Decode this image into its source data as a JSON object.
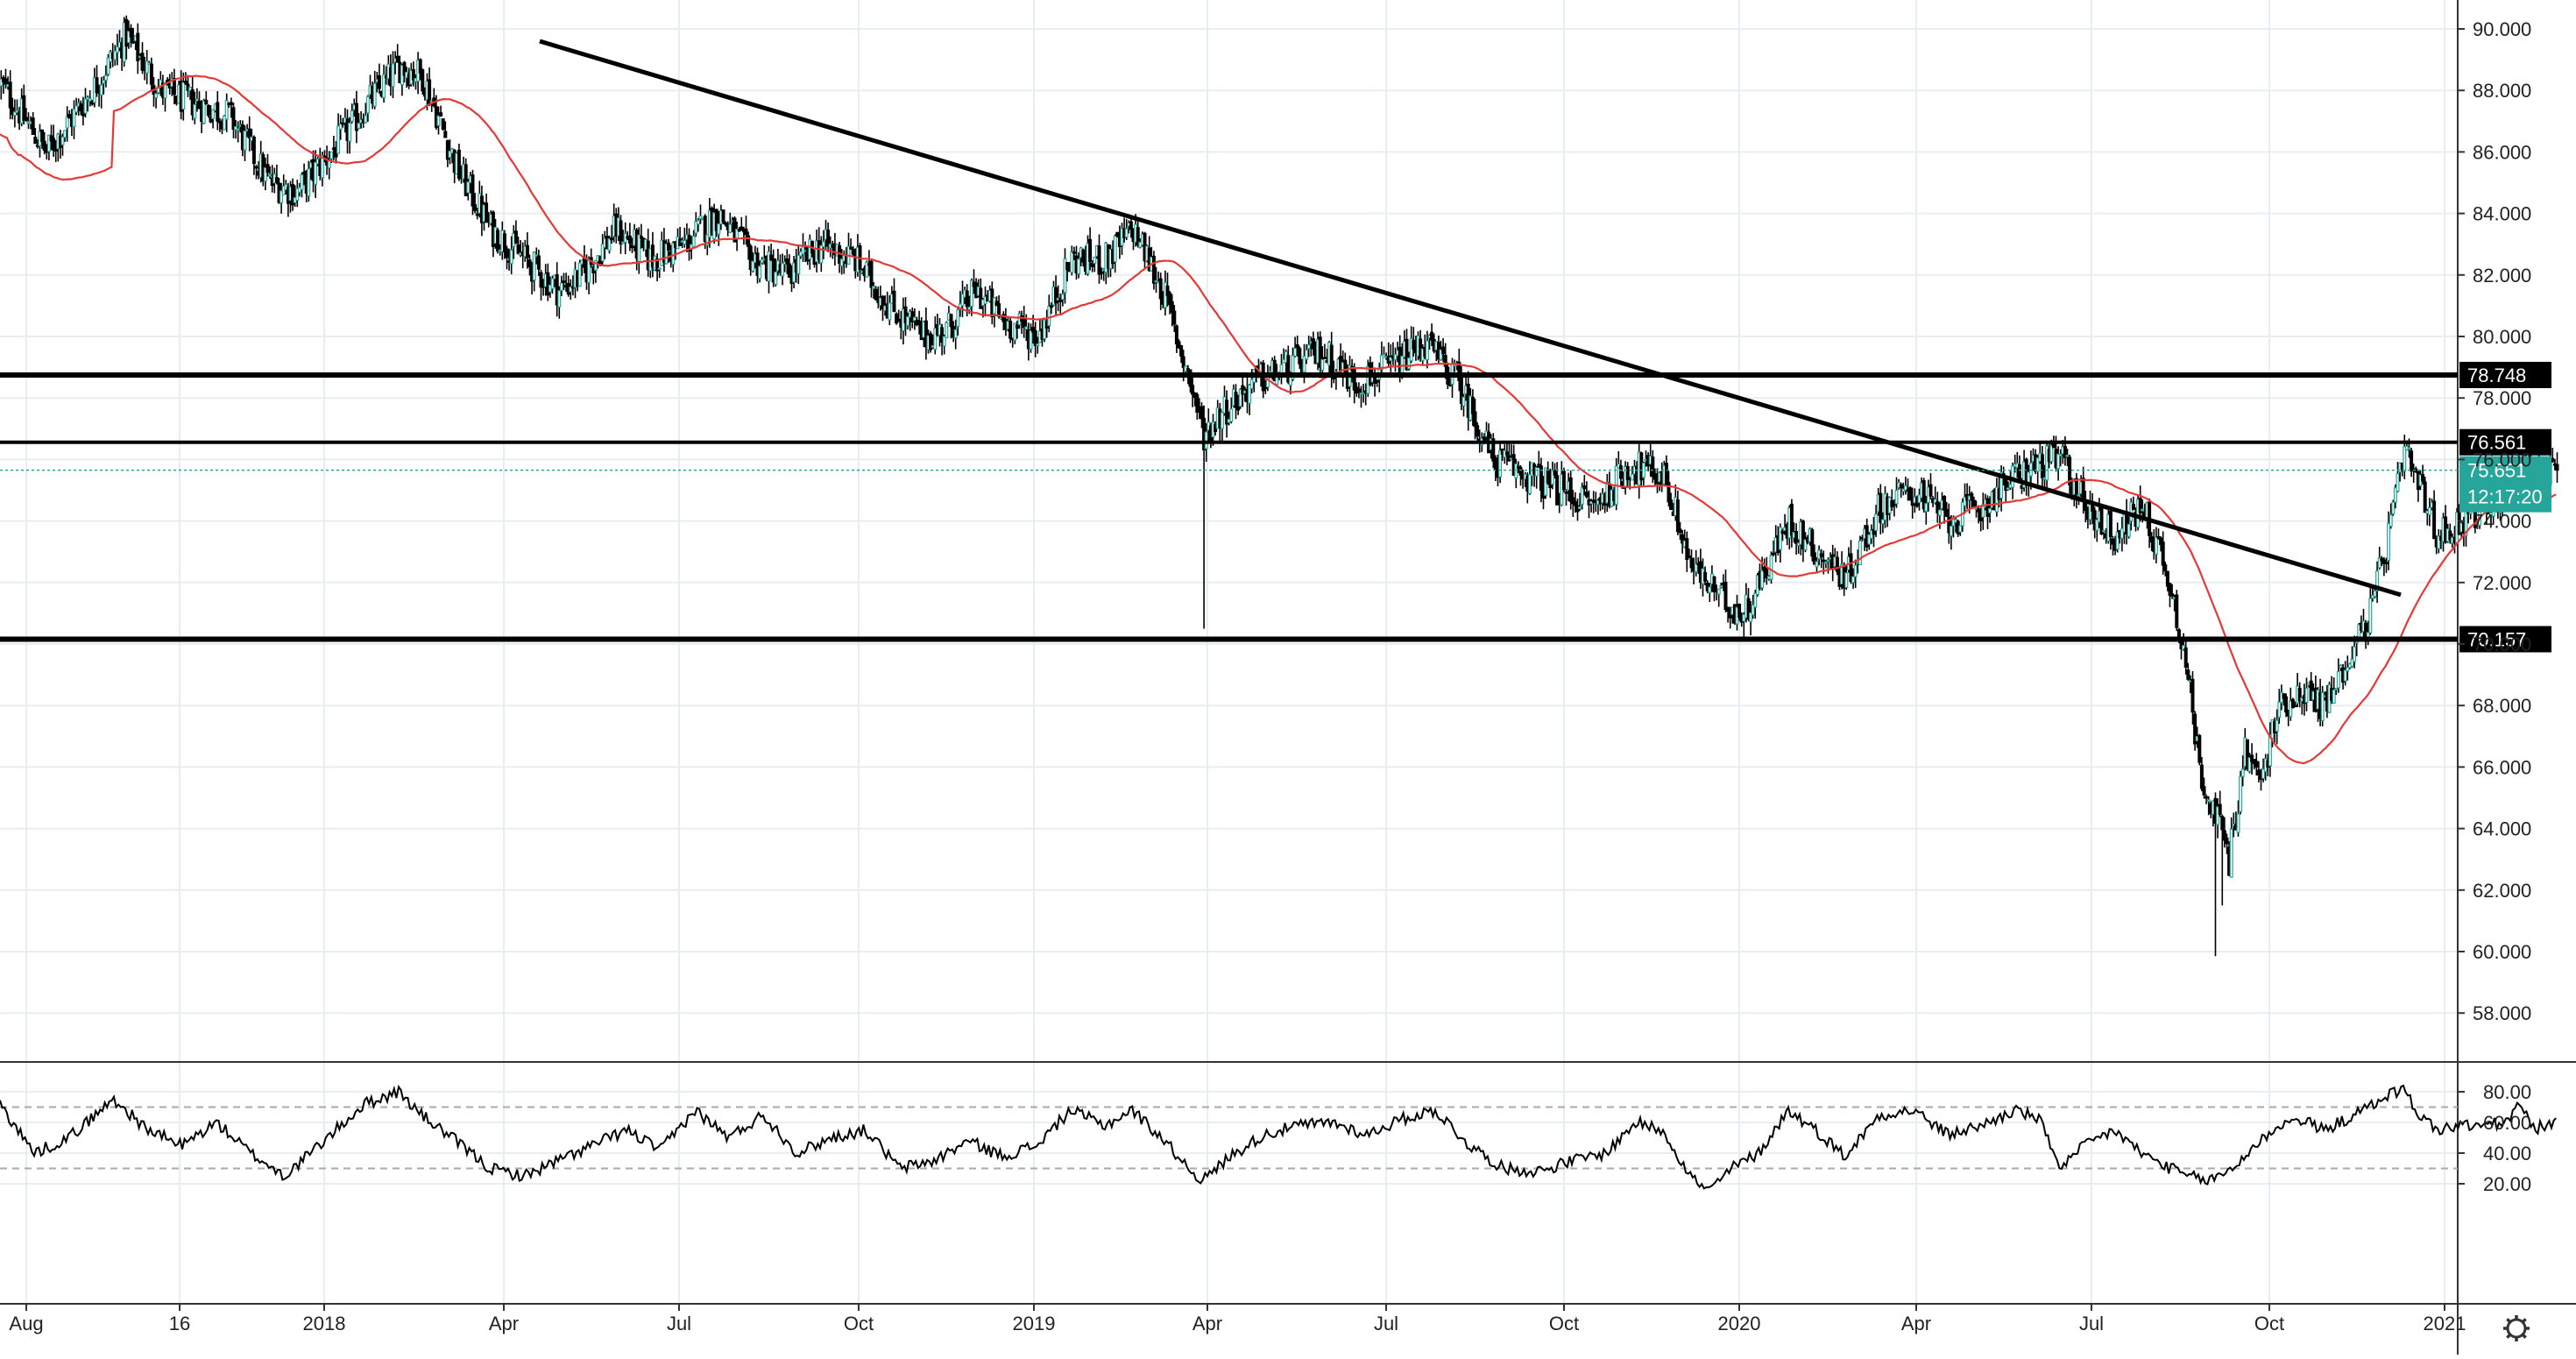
{
  "chart_data": [
    {
      "type": "candlestick",
      "title": "",
      "ylim": [
        55.0,
        91.0
      ],
      "y_ticks": [
        "58.000",
        "60.000",
        "62.000",
        "64.000",
        "66.000",
        "68.000",
        "70.000",
        "72.000",
        "74.000",
        "76.000",
        "78.000",
        "80.000",
        "82.000",
        "84.000",
        "86.000",
        "88.000",
        "90.000"
      ],
      "x_ticks": [
        "Aug",
        "16",
        "2018",
        "Apr",
        "Jul",
        "Oct",
        "2019",
        "Apr",
        "Jul",
        "Oct",
        "2020",
        "Apr",
        "Jul",
        "Oct",
        "2021"
      ],
      "grid": true,
      "price_anchors": [
        {
          "t": 0,
          "v": 88.2
        },
        {
          "t": 20,
          "v": 86.0
        },
        {
          "t": 40,
          "v": 88.0
        },
        {
          "t": 55,
          "v": 89.8
        },
        {
          "t": 70,
          "v": 88.0
        },
        {
          "t": 85,
          "v": 87.6
        },
        {
          "t": 100,
          "v": 87.2
        },
        {
          "t": 118,
          "v": 85.0
        },
        {
          "t": 130,
          "v": 84.7
        },
        {
          "t": 145,
          "v": 86.0
        },
        {
          "t": 160,
          "v": 87.5
        },
        {
          "t": 175,
          "v": 88.8
        },
        {
          "t": 185,
          "v": 88.5
        },
        {
          "t": 200,
          "v": 85.5
        },
        {
          "t": 215,
          "v": 83.5
        },
        {
          "t": 230,
          "v": 82.5
        },
        {
          "t": 245,
          "v": 81.5
        },
        {
          "t": 255,
          "v": 82.0
        },
        {
          "t": 270,
          "v": 83.5
        },
        {
          "t": 285,
          "v": 82.5
        },
        {
          "t": 300,
          "v": 83.0
        },
        {
          "t": 315,
          "v": 84.0
        },
        {
          "t": 330,
          "v": 82.5
        },
        {
          "t": 345,
          "v": 82.0
        },
        {
          "t": 360,
          "v": 83.0
        },
        {
          "t": 375,
          "v": 82.5
        },
        {
          "t": 390,
          "v": 81.0
        },
        {
          "t": 405,
          "v": 80.0
        },
        {
          "t": 415,
          "v": 80.2
        },
        {
          "t": 428,
          "v": 81.5
        },
        {
          "t": 440,
          "v": 80.5
        },
        {
          "t": 455,
          "v": 80.0
        },
        {
          "t": 470,
          "v": 82.5
        },
        {
          "t": 485,
          "v": 82.5
        },
        {
          "t": 497,
          "v": 83.5
        },
        {
          "t": 510,
          "v": 81.5
        },
        {
          "t": 522,
          "v": 78.5
        },
        {
          "t": 528,
          "v": 76.8
        },
        {
          "t": 535,
          "v": 77.5
        },
        {
          "t": 550,
          "v": 78.5
        },
        {
          "t": 565,
          "v": 79.0
        },
        {
          "t": 580,
          "v": 79.5
        },
        {
          "t": 595,
          "v": 78.5
        },
        {
          "t": 610,
          "v": 79.0
        },
        {
          "t": 625,
          "v": 79.8
        },
        {
          "t": 640,
          "v": 78.5
        },
        {
          "t": 655,
          "v": 76.0
        },
        {
          "t": 670,
          "v": 75.5
        },
        {
          "t": 685,
          "v": 75.0
        },
        {
          "t": 700,
          "v": 74.5
        },
        {
          "t": 715,
          "v": 75.8
        },
        {
          "t": 730,
          "v": 75.5
        },
        {
          "t": 742,
          "v": 72.5
        },
        {
          "t": 755,
          "v": 71.5
        },
        {
          "t": 765,
          "v": 71.0
        },
        {
          "t": 775,
          "v": 72.5
        },
        {
          "t": 785,
          "v": 74.0
        },
        {
          "t": 797,
          "v": 73.0
        },
        {
          "t": 810,
          "v": 72.2
        },
        {
          "t": 825,
          "v": 74.5
        },
        {
          "t": 840,
          "v": 75.0
        },
        {
          "t": 855,
          "v": 74.0
        },
        {
          "t": 870,
          "v": 74.5
        },
        {
          "t": 880,
          "v": 75.2
        },
        {
          "t": 892,
          "v": 75.8
        },
        {
          "t": 905,
          "v": 76.0
        },
        {
          "t": 915,
          "v": 74.5
        },
        {
          "t": 928,
          "v": 73.5
        },
        {
          "t": 940,
          "v": 74.5
        },
        {
          "t": 950,
          "v": 72.5
        },
        {
          "t": 958,
          "v": 70.0
        },
        {
          "t": 965,
          "v": 66.0
        },
        {
          "t": 972,
          "v": 64.5
        },
        {
          "t": 978,
          "v": 63.0
        },
        {
          "t": 985,
          "v": 66.5
        },
        {
          "t": 992,
          "v": 65.5
        },
        {
          "t": 1000,
          "v": 68.0
        },
        {
          "t": 1010,
          "v": 68.5
        },
        {
          "t": 1020,
          "v": 68.0
        },
        {
          "t": 1030,
          "v": 69.5
        },
        {
          "t": 1040,
          "v": 71.0
        },
        {
          "t": 1048,
          "v": 73.5
        },
        {
          "t": 1055,
          "v": 76.2
        },
        {
          "t": 1062,
          "v": 75.0
        },
        {
          "t": 1070,
          "v": 73.5
        },
        {
          "t": 1080,
          "v": 74.0
        },
        {
          "t": 1090,
          "v": 74.5
        },
        {
          "t": 1100,
          "v": 75.0
        },
        {
          "t": 1108,
          "v": 76.0
        },
        {
          "t": 1116,
          "v": 75.4
        },
        {
          "t": 1122,
          "v": 75.6
        }
      ],
      "price_stats": {
        "min": 59.85,
        "max": 90.3,
        "last": 75.651
      },
      "downtrend_line": {
        "from": {
          "t": 160,
          "v": 89.6
        },
        "to": {
          "t": 1260,
          "v": 71.6
        }
      },
      "horizontal_levels": [
        {
          "value": 78.748,
          "label": "78.748",
          "heavy": true
        },
        {
          "value": 76.561,
          "label": "76.561",
          "heavy": false
        },
        {
          "value": 70.157,
          "label": "70.157",
          "heavy": true
        }
      ],
      "last_price": {
        "value": 75.651,
        "label": "75.651",
        "countdown": "12:17:20",
        "color": "#26a69a"
      },
      "moving_average": {
        "color": "#e53935"
      },
      "colors": {
        "up": "#26a69a",
        "down": "#000000",
        "levels": "#000000",
        "grid": "#e8edf2"
      }
    },
    {
      "type": "line",
      "title": "",
      "ylim": [
        10.0,
        87.0
      ],
      "y_ticks": [
        "20.00",
        "40.00",
        "60.00",
        "80.00"
      ],
      "reference_levels": [
        70,
        30
      ],
      "osc_anchors": [
        {
          "t": 0,
          "v": 72
        },
        {
          "t": 15,
          "v": 40
        },
        {
          "t": 30,
          "v": 50
        },
        {
          "t": 50,
          "v": 75
        },
        {
          "t": 65,
          "v": 55
        },
        {
          "t": 80,
          "v": 45
        },
        {
          "t": 95,
          "v": 60
        },
        {
          "t": 110,
          "v": 40
        },
        {
          "t": 125,
          "v": 25
        },
        {
          "t": 140,
          "v": 45
        },
        {
          "t": 160,
          "v": 72
        },
        {
          "t": 175,
          "v": 80
        },
        {
          "t": 185,
          "v": 65
        },
        {
          "t": 200,
          "v": 48
        },
        {
          "t": 215,
          "v": 30
        },
        {
          "t": 230,
          "v": 25
        },
        {
          "t": 245,
          "v": 35
        },
        {
          "t": 260,
          "v": 45
        },
        {
          "t": 275,
          "v": 55
        },
        {
          "t": 290,
          "v": 42
        },
        {
          "t": 305,
          "v": 68
        },
        {
          "t": 320,
          "v": 50
        },
        {
          "t": 335,
          "v": 65
        },
        {
          "t": 350,
          "v": 40
        },
        {
          "t": 365,
          "v": 50
        },
        {
          "t": 380,
          "v": 55
        },
        {
          "t": 395,
          "v": 30
        },
        {
          "t": 410,
          "v": 35
        },
        {
          "t": 425,
          "v": 48
        },
        {
          "t": 440,
          "v": 38
        },
        {
          "t": 455,
          "v": 45
        },
        {
          "t": 470,
          "v": 68
        },
        {
          "t": 485,
          "v": 58
        },
        {
          "t": 497,
          "v": 68
        },
        {
          "t": 510,
          "v": 50
        },
        {
          "t": 522,
          "v": 30
        },
        {
          "t": 528,
          "v": 22
        },
        {
          "t": 540,
          "v": 38
        },
        {
          "t": 555,
          "v": 52
        },
        {
          "t": 570,
          "v": 58
        },
        {
          "t": 585,
          "v": 60
        },
        {
          "t": 600,
          "v": 52
        },
        {
          "t": 615,
          "v": 62
        },
        {
          "t": 630,
          "v": 68
        },
        {
          "t": 645,
          "v": 45
        },
        {
          "t": 660,
          "v": 30
        },
        {
          "t": 675,
          "v": 28
        },
        {
          "t": 690,
          "v": 35
        },
        {
          "t": 705,
          "v": 40
        },
        {
          "t": 718,
          "v": 60
        },
        {
          "t": 730,
          "v": 55
        },
        {
          "t": 742,
          "v": 25
        },
        {
          "t": 750,
          "v": 15
        },
        {
          "t": 760,
          "v": 30
        },
        {
          "t": 772,
          "v": 40
        },
        {
          "t": 785,
          "v": 68
        },
        {
          "t": 797,
          "v": 55
        },
        {
          "t": 810,
          "v": 38
        },
        {
          "t": 825,
          "v": 65
        },
        {
          "t": 840,
          "v": 68
        },
        {
          "t": 855,
          "v": 52
        },
        {
          "t": 870,
          "v": 58
        },
        {
          "t": 885,
          "v": 68
        },
        {
          "t": 895,
          "v": 62
        },
        {
          "t": 905,
          "v": 30
        },
        {
          "t": 915,
          "v": 45
        },
        {
          "t": 928,
          "v": 55
        },
        {
          "t": 940,
          "v": 40
        },
        {
          "t": 950,
          "v": 32
        },
        {
          "t": 960,
          "v": 25
        },
        {
          "t": 970,
          "v": 22
        },
        {
          "t": 980,
          "v": 30
        },
        {
          "t": 990,
          "v": 45
        },
        {
          "t": 1000,
          "v": 58
        },
        {
          "t": 1010,
          "v": 62
        },
        {
          "t": 1020,
          "v": 55
        },
        {
          "t": 1030,
          "v": 62
        },
        {
          "t": 1040,
          "v": 70
        },
        {
          "t": 1048,
          "v": 78
        },
        {
          "t": 1055,
          "v": 82
        },
        {
          "t": 1062,
          "v": 65
        },
        {
          "t": 1070,
          "v": 55
        },
        {
          "t": 1080,
          "v": 58
        },
        {
          "t": 1090,
          "v": 58
        },
        {
          "t": 1100,
          "v": 60
        },
        {
          "t": 1106,
          "v": 72
        },
        {
          "t": 1112,
          "v": 56
        },
        {
          "t": 1122,
          "v": 59
        }
      ],
      "colors": {
        "line": "#000000",
        "reference": "#aaaaaa"
      }
    }
  ]
}
